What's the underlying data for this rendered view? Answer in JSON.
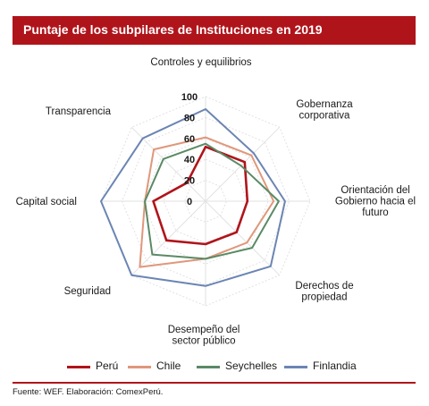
{
  "header": {
    "title": "Puntaje de los subpilares de Instituciones en 2019"
  },
  "chart_data": {
    "type": "radar",
    "title": "Puntaje de los subpilares de Instituciones en 2019",
    "axes": [
      "Controles y equilibrios",
      "Gobernanza corporativa",
      "Orientación del Gobierno hacia el futuro",
      "Derechos de propiedad",
      "Desempeño del sector público",
      "Seguridad",
      "Capital social",
      "Transparencia"
    ],
    "axis_label_lines": [
      [
        "Controles y equilibrios"
      ],
      [
        "Gobernanza",
        "corporativa"
      ],
      [
        "Orientación del",
        "Gobierno hacia el",
        "futuro"
      ],
      [
        "Derechos de",
        "propiedad"
      ],
      [
        "Desempeño del",
        "sector público"
      ],
      [
        "Seguridad"
      ],
      [
        "Capital social"
      ],
      [
        "Transparencia"
      ]
    ],
    "rlim": [
      0,
      100
    ],
    "ticks": [
      0,
      20,
      40,
      60,
      80,
      100
    ],
    "tick_labels": [
      "0",
      "20",
      "40",
      "60",
      "80",
      "100"
    ],
    "grid": true,
    "legend_position": "bottom",
    "series": [
      {
        "name": "Perú",
        "color": "#b0141b",
        "values": [
          52,
          53,
          40,
          42,
          41,
          53,
          50,
          25
        ]
      },
      {
        "name": "Chile",
        "color": "#e0977b",
        "values": [
          61,
          62,
          65,
          56,
          55,
          89,
          58,
          70
        ]
      },
      {
        "name": "Seychelles",
        "color": "#5a8a66",
        "values": [
          55,
          48,
          70,
          63,
          55,
          72,
          58,
          57
        ]
      },
      {
        "name": "Finlandia",
        "color": "#6b85b3",
        "values": [
          88,
          65,
          76,
          88,
          81,
          100,
          100,
          85
        ]
      }
    ]
  },
  "source": "Fuente: WEF. Elaboración: ComexPerú."
}
